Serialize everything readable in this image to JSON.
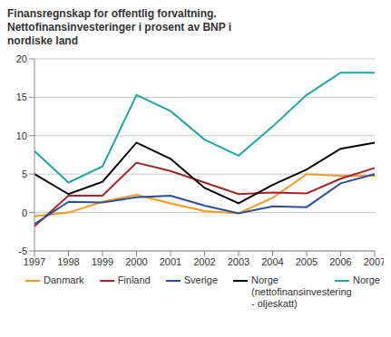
{
  "chart_data": {
    "type": "line",
    "title": "Finansregnskap for offentlig forvaltning. Nettofinansinvesteringer i prosent av BNP i nordiske land",
    "categories": [
      "1997",
      "1998",
      "1999",
      "2000",
      "2001",
      "2002",
      "2003",
      "2004",
      "2005",
      "2006",
      "2007"
    ],
    "series": [
      {
        "name": "Danmark",
        "color": "#f39a1e",
        "values": [
          -0.5,
          0,
          1.4,
          2.3,
          1.2,
          0.2,
          -0.1,
          1.9,
          5.0,
          4.8,
          4.8
        ]
      },
      {
        "name": "Finland",
        "color": "#a3262a",
        "values": [
          -1.8,
          2.2,
          2.2,
          6.5,
          5.4,
          3.9,
          2.4,
          2.6,
          2.5,
          4.4,
          5.8
        ]
      },
      {
        "name": "Sverige",
        "color": "#2b4f9e",
        "values": [
          -1.5,
          1.4,
          1.3,
          2.0,
          2.2,
          0.9,
          -0.1,
          0.8,
          0.7,
          3.8,
          5.0
        ]
      },
      {
        "name": "Norge (nettofinansinvestering - oljeskatt)",
        "color": "#000000",
        "values": [
          5.0,
          2.4,
          4.0,
          9.1,
          7.0,
          3.2,
          1.2,
          3.6,
          5.6,
          8.3,
          9.1
        ]
      },
      {
        "name": "Norge",
        "color": "#1fa6a6",
        "values": [
          8.0,
          3.9,
          6.0,
          15.3,
          13.2,
          9.5,
          7.4,
          11.2,
          15.3,
          18.2,
          18.2
        ]
      }
    ],
    "ylim": [
      -5,
      20
    ],
    "yticks": [
      -5,
      0,
      5,
      10,
      15,
      20
    ],
    "grid": true,
    "legend": "bottom"
  }
}
